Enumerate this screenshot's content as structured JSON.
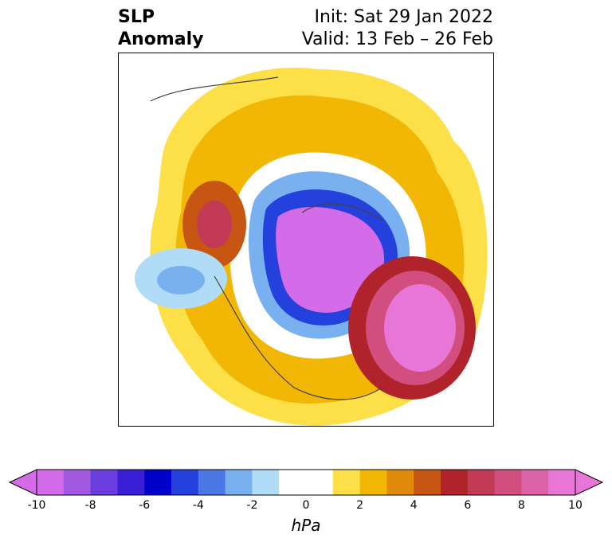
{
  "header": {
    "title_line1": "SLP",
    "title_line2": "Anomaly",
    "init": "Init: Sat 29 Jan 2022",
    "valid": "Valid: 13 Feb – 26 Feb"
  },
  "colorbar": {
    "unit": "hPa",
    "ticks": [
      "-10",
      "-8",
      "-6",
      "-4",
      "-2",
      "0",
      "2",
      "4",
      "6",
      "8",
      "10"
    ],
    "colors": [
      "#d46be8",
      "#a259e0",
      "#6b3ee0",
      "#3a1fd6",
      "#0000cc",
      "#2440dd",
      "#4c78e6",
      "#78b0f0",
      "#b0dcf8",
      "#ffffff",
      "#ffffff",
      "#fde047",
      "#f2b705",
      "#e08a0c",
      "#c75613",
      "#b0232a",
      "#c23a55",
      "#d14e7e",
      "#dc63a8",
      "#e876d6"
    ]
  }
}
